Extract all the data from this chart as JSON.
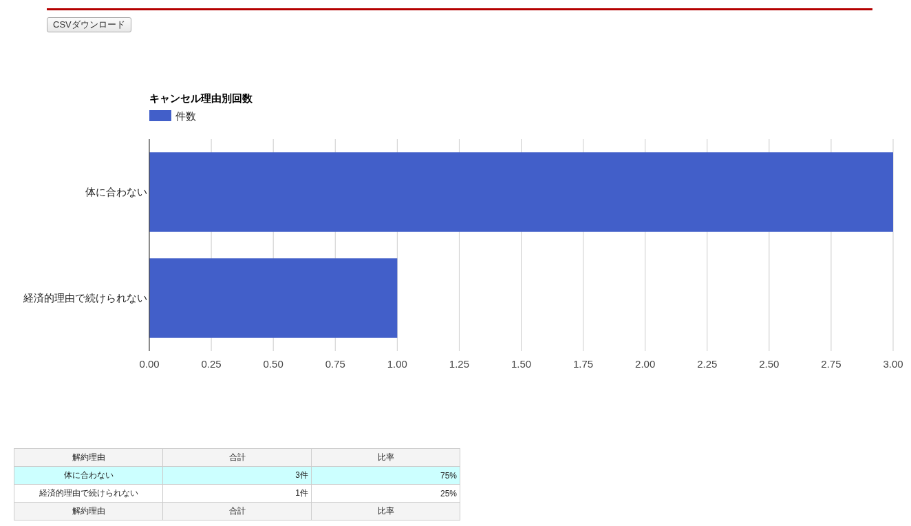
{
  "chart_data": {
    "type": "bar",
    "orientation": "horizontal",
    "title": "キャンセル理由別回数",
    "categories": [
      "体に合わない",
      "経済的理由で続けられない"
    ],
    "series": [
      {
        "name": "件数",
        "color": "#425fc9",
        "values": [
          3,
          1
        ]
      }
    ],
    "xlim": [
      0,
      3
    ],
    "xticks": [
      {
        "value": 0,
        "label": "0.00"
      },
      {
        "value": 0.25,
        "label": "0.25"
      },
      {
        "value": 0.5,
        "label": "0.50"
      },
      {
        "value": 0.75,
        "label": "0.75"
      },
      {
        "value": 1,
        "label": "1.00"
      },
      {
        "value": 1.25,
        "label": "1.25"
      },
      {
        "value": 1.5,
        "label": "1.50"
      },
      {
        "value": 1.75,
        "label": "1.75"
      },
      {
        "value": 2,
        "label": "2.00"
      },
      {
        "value": 2.25,
        "label": "2.25"
      },
      {
        "value": 2.5,
        "label": "2.50"
      },
      {
        "value": 2.75,
        "label": "2.75"
      },
      {
        "value": 3,
        "label": "3.00"
      }
    ],
    "grid": "x",
    "legend": "top left",
    "annotations": [
      "CSVダウンロード",
      "解約理由",
      "合計",
      "比率",
      "3件",
      "75%",
      "1件",
      "25%",
      "解約理由",
      "合計",
      "比率"
    ]
  }
}
